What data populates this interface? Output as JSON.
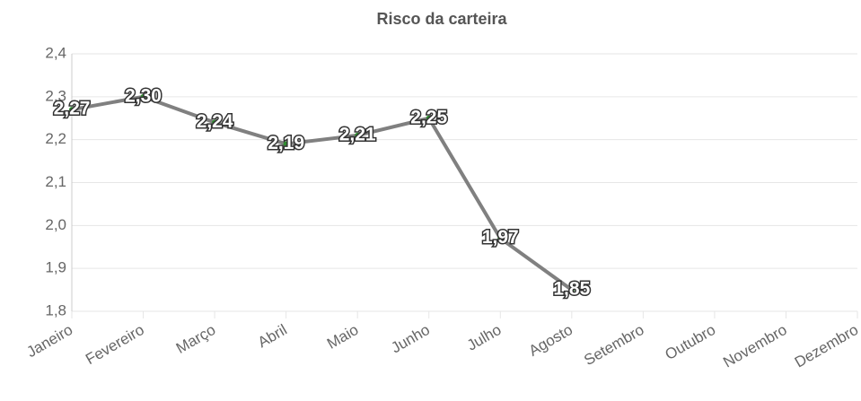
{
  "chart_data": {
    "type": "line",
    "title": "Risco da carteira",
    "categories": [
      "Janeiro",
      "Fevereiro",
      "Março",
      "Abril",
      "Maio",
      "Junho",
      "Julho",
      "Agosto",
      "Setembro",
      "Outubro",
      "Novembro",
      "Dezembro"
    ],
    "series": [
      {
        "color": "#808080",
        "point_color": "#2e8b2e",
        "values": [
          2.27,
          2.3,
          2.24,
          2.19,
          2.21,
          2.25,
          1.97,
          1.85,
          null,
          null,
          null,
          null
        ],
        "value_labels": [
          "2,27",
          "2,30",
          "2,24",
          "2,19",
          "2,21",
          "2,25",
          "1,97",
          "1,85",
          null,
          null,
          null,
          null
        ]
      }
    ],
    "ylim": [
      1.8,
      2.4
    ],
    "yticks": [
      {
        "value": 1.8,
        "label": "1,8"
      },
      {
        "value": 1.9,
        "label": "1,9"
      },
      {
        "value": 2.0,
        "label": "2,0"
      },
      {
        "value": 2.1,
        "label": "2,1"
      },
      {
        "value": 2.2,
        "label": "2,2"
      },
      {
        "value": 2.3,
        "label": "2,3"
      },
      {
        "value": 2.4,
        "label": "2,4"
      }
    ],
    "grid": true
  }
}
